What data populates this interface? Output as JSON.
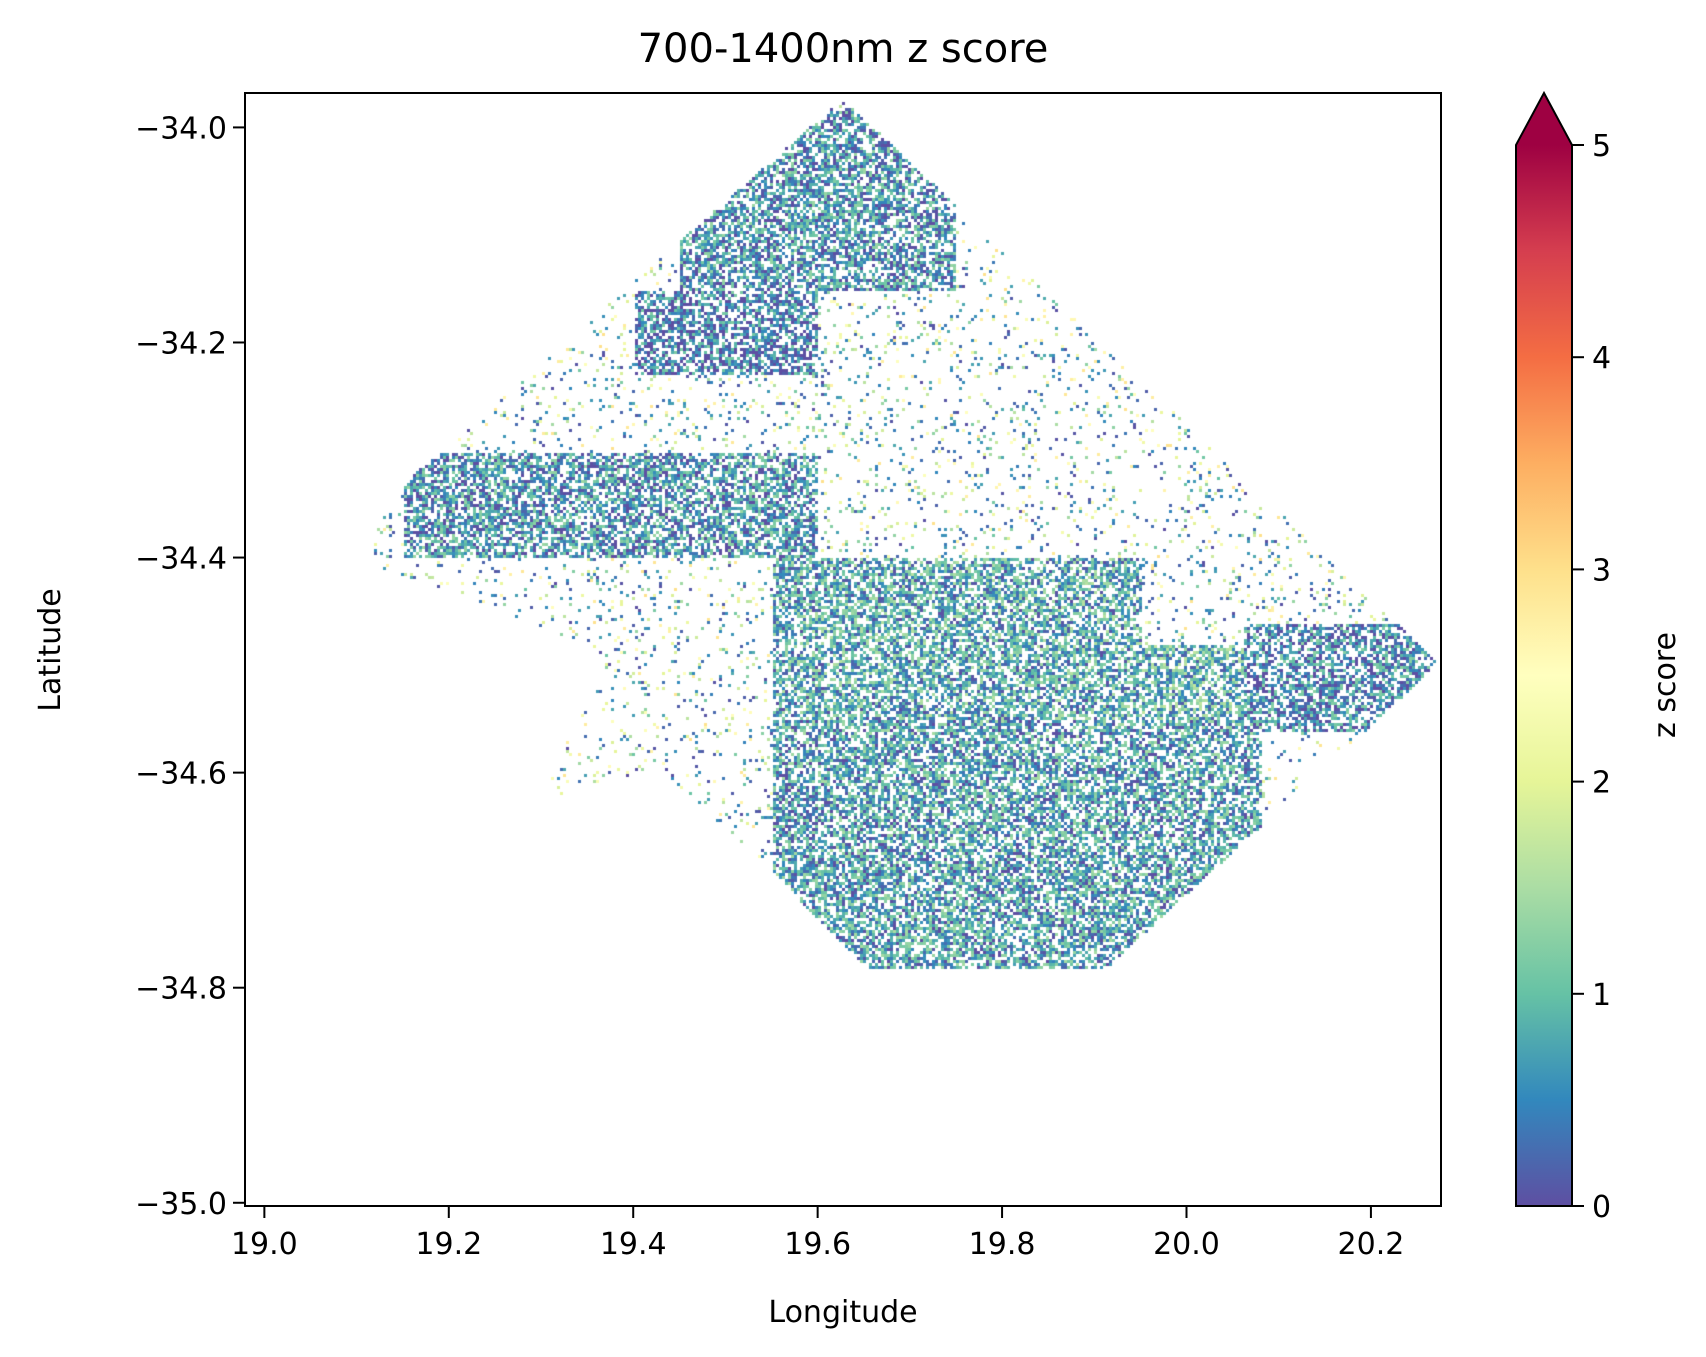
{
  "chart_data": {
    "type": "heatmap",
    "title": "700-1400nm z score",
    "xlabel": "Longitude",
    "ylabel": "Latitude",
    "xlim": [
      18.979,
      20.276
    ],
    "ylim": [
      -35.003,
      -33.968
    ],
    "xticks": [
      19.0,
      19.2,
      19.4,
      19.6,
      19.8,
      20.0,
      20.2
    ],
    "xtick_labels": [
      "19.0",
      "19.2",
      "19.4",
      "19.6",
      "19.8",
      "20.0",
      "20.2"
    ],
    "yticks": [
      -34.0,
      -34.2,
      -34.4,
      -34.6,
      -34.8,
      -35.0
    ],
    "ytick_labels": [
      "−34.0",
      "−34.2",
      "−34.4",
      "−34.6",
      "−34.8",
      "−35.0"
    ],
    "grid": false,
    "colorbar": {
      "label": "z score",
      "colormap": "Spectral_r",
      "range": [
        0,
        5
      ],
      "extend": "max",
      "ticks": [
        0,
        1,
        2,
        3,
        4,
        5
      ],
      "tick_labels": [
        "0",
        "1",
        "2",
        "3",
        "4",
        "5"
      ],
      "colors": [
        "#5e4fa2",
        "#3288bd",
        "#66c2a5",
        "#abdda4",
        "#e6f598",
        "#ffffbf",
        "#fee08b",
        "#fdae61",
        "#f46d43",
        "#d53e4f",
        "#9e0142"
      ]
    },
    "region_outline_lonlat": [
      [
        19.626,
        -33.972
      ],
      [
        20.272,
        -34.497
      ],
      [
        19.911,
        -34.781
      ],
      [
        19.65,
        -34.78
      ],
      [
        19.543,
        -34.685
      ],
      [
        19.425,
        -34.594
      ],
      [
        19.3,
        -34.624
      ],
      [
        19.365,
        -34.492
      ],
      [
        19.211,
        -34.431
      ],
      [
        19.116,
        -34.41
      ],
      [
        19.116,
        -34.355
      ]
    ],
    "dense_low_z_areas": [
      {
        "lon": [
          19.55,
          20.08
        ],
        "lat": [
          -34.78,
          -34.55
        ],
        "z_mean": 0.7
      },
      {
        "lon": [
          19.55,
          19.95
        ],
        "lat": [
          -34.55,
          -34.4
        ],
        "z_mean": 0.8
      },
      {
        "lon": [
          19.8,
          20.06
        ],
        "lat": [
          -34.58,
          -34.48
        ],
        "z_mean": 0.9
      },
      {
        "lon": [
          20.06,
          20.27
        ],
        "lat": [
          -34.56,
          -34.46
        ],
        "z_mean": 0.5
      },
      {
        "lon": [
          19.15,
          19.6
        ],
        "lat": [
          -34.4,
          -34.3
        ],
        "z_mean": 0.6
      },
      {
        "lon": [
          19.4,
          19.6
        ],
        "lat": [
          -34.23,
          -34.15
        ],
        "z_mean": 0.4
      },
      {
        "lon": [
          19.45,
          19.75
        ],
        "lat": [
          -34.15,
          -33.98
        ],
        "z_mean": 0.6
      }
    ],
    "sparse_background_z_mean": 2.0
  }
}
